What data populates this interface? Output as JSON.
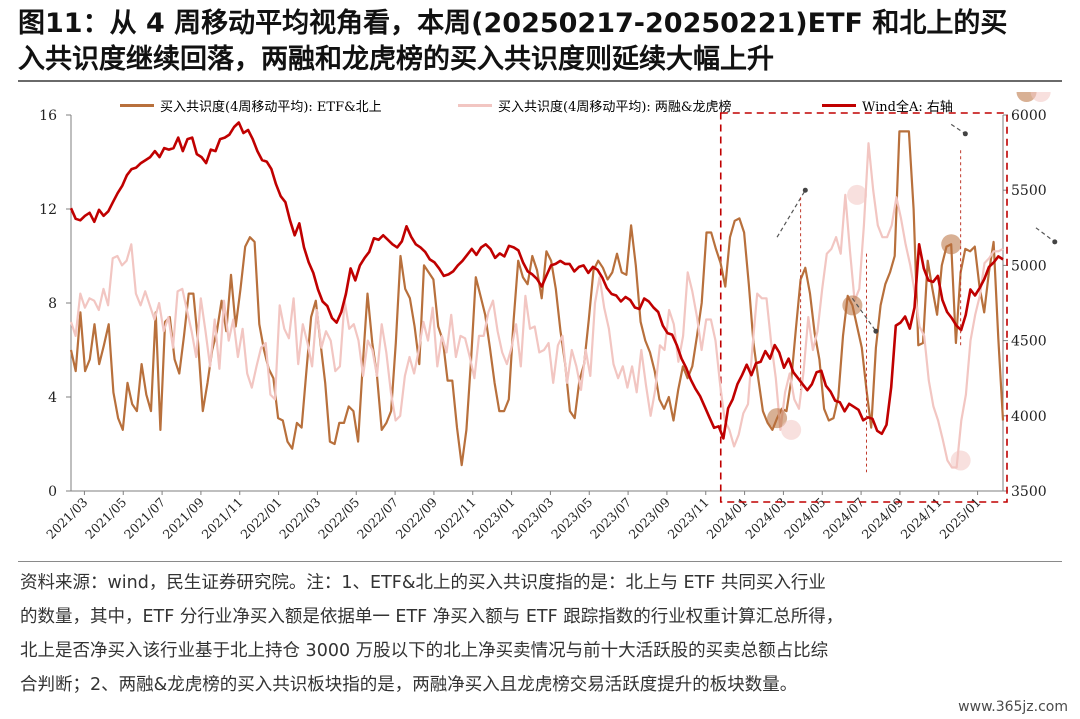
{
  "header": {
    "title_line1": "图11：从 4 周移动平均视角看，本周(20250217-20250221)ETF 和北上的买",
    "title_line2": "入共识度继续回落，两融和龙虎榜的买入共识度则延续大幅上升"
  },
  "chart_data": {
    "type": "line",
    "x_labels": [
      "2021/03",
      "2021/05",
      "2021/07",
      "2021/09",
      "2021/11",
      "2022/01",
      "2022/03",
      "2022/05",
      "2022/07",
      "2022/09",
      "2022/11",
      "2023/01",
      "2023/03",
      "2023/05",
      "2023/07",
      "2023/09",
      "2023/11",
      "2024/01",
      "2024/03",
      "2024/05",
      "2024/07",
      "2024/09",
      "2024/11",
      "2025/01"
    ],
    "y_left": {
      "ticks": [
        "0",
        "4",
        "8",
        "12",
        "16"
      ],
      "range": [
        0,
        16
      ]
    },
    "y_right": {
      "ticks": [
        "3500",
        "4000",
        "4500",
        "5000",
        "5500",
        "6000"
      ],
      "range": [
        3500,
        6000
      ]
    },
    "series": [
      {
        "name": "买入共识度(4周移动平均): ETF&北上",
        "axis": "left",
        "color": "#b8703c",
        "values": [
          6.0,
          5.1,
          7.6,
          5.1,
          5.6,
          7.1,
          5.4,
          6.2,
          7.1,
          4.2,
          3.1,
          2.6,
          4.6,
          3.7,
          3.4,
          5.4,
          4.1,
          3.4,
          7.6,
          2.6,
          7.2,
          7.4,
          5.6,
          5.0,
          6.6,
          8.4,
          8.4,
          6.3,
          3.4,
          4.6,
          6.0,
          6.8,
          8.1,
          6.8,
          9.2,
          7.0,
          8.6,
          10.4,
          10.8,
          10.6,
          7.1,
          6.0,
          5.2,
          4.8,
          3.1,
          3.0,
          2.1,
          1.8,
          2.9,
          2.7,
          5.1,
          7.4,
          8.1,
          6.3,
          4.6,
          2.1,
          2.0,
          2.9,
          2.9,
          3.6,
          3.4,
          2.1,
          5.4,
          8.4,
          6.3,
          4.9,
          2.6,
          2.9,
          3.4,
          6.3,
          10.0,
          8.6,
          8.2,
          7.0,
          5.4,
          9.6,
          9.3,
          9.0,
          7.0,
          6.4,
          4.7,
          4.7,
          2.7,
          1.1,
          2.6,
          5.6,
          9.1,
          8.3,
          7.5,
          6.1,
          4.6,
          3.4,
          3.4,
          3.9,
          7.2,
          9.8,
          9.1,
          8.8,
          10.0,
          9.4,
          8.2,
          10.2,
          9.8,
          8.6,
          6.8,
          5.4,
          3.4,
          3.1,
          4.7,
          5.4,
          7.3,
          9.4,
          9.8,
          9.5,
          9.0,
          9.3,
          10.1,
          9.3,
          9.2,
          11.3,
          9.6,
          7.2,
          6.4,
          5.9,
          5.1,
          3.9,
          3.5,
          4.0,
          3.0,
          4.3,
          5.3,
          4.8,
          5.3,
          6.6,
          8.0,
          11.0,
          11.0,
          10.3,
          9.7,
          8.7,
          10.8,
          11.5,
          11.6,
          11.0,
          8.8,
          6.3,
          4.8,
          3.4,
          2.9,
          2.6,
          3.1,
          3.5,
          3.4,
          4.7,
          6.9,
          9.0,
          9.5,
          8.4,
          6.7,
          5.6,
          3.5,
          3.0,
          3.1,
          4.0,
          6.6,
          8.3,
          7.9,
          7.0,
          6.1,
          4.3,
          2.7,
          6.1,
          7.9,
          8.8,
          9.3,
          10.0,
          15.3,
          15.3,
          15.3,
          12.0,
          6.2,
          6.3,
          9.8,
          8.6,
          7.5,
          9.6,
          10.4,
          10.5,
          6.3,
          9.3,
          10.3,
          10.2,
          10.4,
          8.7,
          7.6,
          9.3,
          10.6,
          6.5,
          3.0
        ]
      },
      {
        "name": "买入共识度(4周移动平均): 两融&龙虎榜",
        "axis": "left",
        "color": "#f2c6c2",
        "values": [
          7.2,
          6.6,
          8.4,
          7.8,
          8.2,
          8.1,
          7.7,
          8.6,
          7.9,
          9.9,
          10.0,
          9.6,
          9.8,
          10.5,
          8.4,
          7.9,
          8.5,
          7.9,
          7.3,
          8.0,
          6.8,
          7.4,
          6.1,
          8.5,
          8.6,
          7.7,
          6.8,
          5.7,
          8.2,
          6.8,
          5.3,
          7.3,
          5.2,
          8.1,
          6.4,
          7.3,
          5.7,
          6.9,
          5.0,
          4.4,
          5.3,
          6.1,
          6.3,
          4.1,
          3.9,
          7.9,
          6.9,
          6.5,
          8.2,
          5.4,
          7.1,
          6.3,
          5.3,
          7.7,
          6.1,
          6.8,
          6.4,
          5.1,
          5.3,
          8.1,
          6.9,
          7.1,
          6.4,
          4.9,
          6.4,
          6.0,
          4.9,
          7.1,
          5.9,
          4.2,
          3.0,
          3.2,
          4.9,
          5.7,
          5.0,
          6.0,
          7.2,
          6.4,
          7.8,
          5.3,
          6.6,
          5.9,
          7.5,
          5.7,
          6.6,
          6.5,
          5.7,
          4.8,
          6.6,
          6.6,
          7.6,
          8.1,
          6.8,
          5.9,
          5.4,
          6.1,
          7.1,
          5.3,
          8.3,
          6.9,
          7.0,
          5.9,
          6.0,
          6.3,
          4.6,
          6.2,
          6.6,
          4.6,
          6.0,
          5.3,
          4.3,
          6.0,
          4.9,
          8.0,
          9.1,
          7.8,
          6.9,
          5.4,
          4.8,
          5.3,
          4.4,
          5.3,
          4.2,
          6.0,
          4.5,
          3.2,
          4.3,
          6.2,
          6.0,
          7.7,
          7.1,
          5.5,
          6.6,
          9.3,
          8.5,
          7.4,
          6.0,
          7.3,
          7.3,
          6.4,
          4.5,
          3.0,
          2.6,
          1.9,
          2.4,
          3.3,
          3.7,
          6.2,
          8.4,
          8.2,
          8.2,
          6.3,
          4.8,
          2.6,
          4.2,
          5.0,
          3.9,
          3.5,
          5.1,
          7.4,
          6.0,
          6.8,
          8.6,
          10.1,
          10.3,
          10.8,
          10.1,
          12.6,
          10.2,
          8.1,
          8.6,
          11.3,
          14.8,
          12.8,
          11.3,
          10.8,
          10.8,
          11.3,
          12.5,
          11.6,
          10.5,
          9.6,
          8.4,
          7.0,
          6.6,
          4.7,
          3.6,
          3.0,
          2.2,
          1.3,
          1.0,
          1.0,
          3.0,
          4.1,
          6.4,
          7.5,
          8.3,
          9.7,
          9.9,
          10.2,
          10.2,
          10.3
        ]
      },
      {
        "name": "Wind全A: 右轴",
        "axis": "right",
        "color": "#c00000",
        "values": [
          5380,
          5310,
          5300,
          5330,
          5350,
          5290,
          5370,
          5330,
          5360,
          5420,
          5480,
          5530,
          5600,
          5640,
          5650,
          5680,
          5700,
          5720,
          5760,
          5720,
          5780,
          5770,
          5780,
          5850,
          5760,
          5840,
          5850,
          5740,
          5720,
          5680,
          5770,
          5760,
          5840,
          5850,
          5870,
          5920,
          5950,
          5880,
          5900,
          5840,
          5760,
          5700,
          5690,
          5640,
          5540,
          5460,
          5420,
          5300,
          5200,
          5280,
          5120,
          5020,
          4950,
          4840,
          4760,
          4730,
          4650,
          4620,
          4690,
          4810,
          4980,
          4900,
          5000,
          5050,
          5090,
          5180,
          5170,
          5200,
          5170,
          5140,
          5120,
          5160,
          5260,
          5190,
          5140,
          5120,
          5090,
          5040,
          5020,
          4980,
          4930,
          4940,
          4960,
          5000,
          5030,
          5070,
          5110,
          5070,
          5120,
          5140,
          5110,
          5050,
          5080,
          5060,
          5130,
          5120,
          5100,
          5020,
          4960,
          4940,
          4910,
          4860,
          4930,
          5000,
          5010,
          5030,
          5010,
          5010,
          4960,
          4990,
          5000,
          4950,
          4990,
          4970,
          4920,
          4850,
          4810,
          4800,
          4760,
          4790,
          4770,
          4720,
          4710,
          4780,
          4760,
          4720,
          4690,
          4600,
          4550,
          4540,
          4470,
          4380,
          4320,
          4240,
          4180,
          4130,
          4060,
          3990,
          3920,
          3930,
          3850,
          4050,
          4110,
          4210,
          4270,
          4340,
          4270,
          4350,
          4360,
          4430,
          4380,
          4470,
          4420,
          4320,
          4380,
          4290,
          4250,
          4210,
          4170,
          4210,
          4290,
          4300,
          4200,
          4160,
          4100,
          4090,
          4030,
          4080,
          4060,
          4040,
          3970,
          3990,
          3980,
          3900,
          3880,
          3940,
          4190,
          4600,
          4620,
          4660,
          4580,
          4720,
          5140,
          4980,
          4900,
          4890,
          4930,
          4770,
          4690,
          4650,
          4600,
          4570,
          4670,
          4840,
          4800,
          4850,
          4910,
          4990,
          5020,
          5060,
          5040
        ]
      }
    ],
    "highlight": {
      "type": "dashed-rect",
      "color": "#c00000",
      "start_label": "2023/11"
    }
  },
  "note": {
    "line1": "资料来源：wind，民生证券研究院。注：1、ETF&北上的买入共识度指的是：北上与 ETF 共同买入行业",
    "line2": "的数量，其中，ETF 分行业净买入额是依据单一 ETF 净买入额与 ETF 跟踪指数的行业权重计算汇总所得，",
    "line3": "北上是否净买入该行业基于北上持仓 3000 万股以下的北上净买卖情况与前十大活跃股的买卖总额占比综",
    "line4": "合判断；2、两融&龙虎榜的买入共识板块指的是，两融净买入且龙虎榜交易活跃度提升的板块数量。"
  },
  "watermark": "www.365jz.com"
}
